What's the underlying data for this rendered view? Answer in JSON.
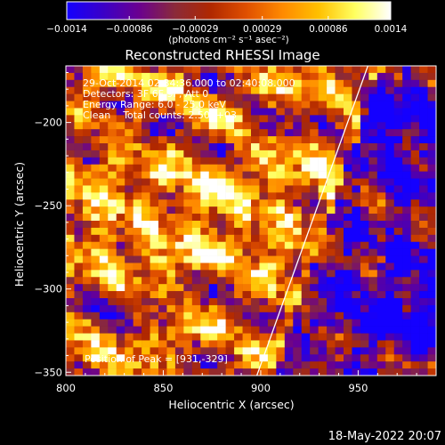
{
  "chart_data": {
    "type": "heatmap",
    "title": "Reconstructed RHESSI Image",
    "xlabel": "Heliocentric X (arcsec)",
    "ylabel": "Heliocentric Y (arcsec)",
    "xlim": [
      800,
      990
    ],
    "ylim": [
      -352,
      -166
    ],
    "xticks": [
      800,
      850,
      900,
      950
    ],
    "yticks": [
      -200,
      -250,
      -300,
      -350
    ],
    "xtick_labels": [
      "800",
      "850",
      "900",
      "950"
    ],
    "ytick_labels": [
      "−200",
      "−250",
      "−300",
      "−350"
    ],
    "grid": false,
    "colorbar": {
      "range": [
        -0.0014,
        0.0014
      ],
      "ticks": [
        -0.0014,
        -0.00086,
        -0.00029,
        0.00029,
        0.00086,
        0.0014
      ],
      "tick_labels": [
        "−0.0014",
        "−0.00086",
        "−0.00029",
        "0.00029",
        "0.00086",
        "0.0014"
      ],
      "label": "(photons cm⁻² s⁻¹ asec⁻²)",
      "colormap": [
        "#1400ff",
        "#3a00c8",
        "#6a0090",
        "#8a2a3a",
        "#b02800",
        "#e05000",
        "#ff8a00",
        "#ffc000",
        "#ffff60",
        "#ffffff"
      ]
    },
    "annotations": [
      "29-Oct-2014 02:34:36.000 to 02:40:08.000",
      "Detectors: 3F 6F 9F, Att 0",
      "Energy Range: 6.0 - 25.0 keV",
      "Clean    Total counts: 2.50E+03"
    ],
    "peak_label": "Position of Peak = [931,-329]",
    "peak": [
      931,
      -329
    ],
    "limb_line": [
      [
        898,
        -352
      ],
      [
        955,
        -166
      ]
    ]
  },
  "footer": {
    "date": "18-May-2022 20:07"
  },
  "colors": {
    "background": "#000000",
    "text": "#ffffff",
    "limb": "#ffffff"
  }
}
